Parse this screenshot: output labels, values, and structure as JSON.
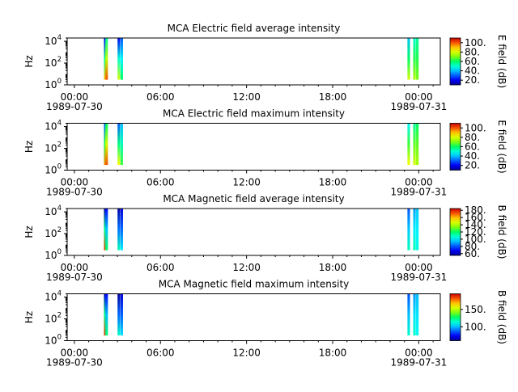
{
  "chart_data": [
    {
      "type": "heatmap",
      "title": "MCA  Electric field average intensity",
      "ylabel": "Hz",
      "y_scale": "log",
      "ylim": [
        1,
        20000
      ],
      "y_ticks": [
        {
          "base": "10",
          "exp": "0"
        },
        {
          "base": "10",
          "exp": "2"
        },
        {
          "base": "10",
          "exp": "4"
        }
      ],
      "x_ticks": [
        "00:00",
        "06:00",
        "12:00",
        "18:00",
        "00:00"
      ],
      "x_dates": [
        "1989-07-30",
        "1989-07-31"
      ],
      "xlim_hours": [
        -0.5,
        25.5
      ],
      "colorbar": {
        "label": "E field (dB)",
        "range": [
          10,
          110
        ],
        "ticks": [
          "20.",
          "40.",
          "60.",
          "80.",
          "100."
        ],
        "tick_values": [
          20,
          40,
          60,
          80,
          100
        ]
      },
      "passes": [
        {
          "start_h": 2.1,
          "end_h": 3.5,
          "columns": [
            {
              "t": 2.15,
              "top": 20000,
              "bottom": 3,
              "top_db": 20,
              "bottom_db": 90
            },
            {
              "t": 2.25,
              "top": 20000,
              "bottom": 3,
              "top_db": 55,
              "bottom_db": 100
            },
            {
              "t": 3.1,
              "top": 20000,
              "bottom": 3,
              "top_db": 20,
              "bottom_db": 80
            },
            {
              "t": 3.3,
              "top": 20000,
              "bottom": 3,
              "top_db": 30,
              "bottom_db": 60
            }
          ]
        },
        {
          "start_h": 23.2,
          "end_h": 24.0,
          "columns": [
            {
              "t": 23.3,
              "top": 20000,
              "bottom": 3,
              "top_db": 40,
              "bottom_db": 80
            },
            {
              "t": 23.7,
              "top": 20000,
              "bottom": 3,
              "top_db": 50,
              "bottom_db": 75
            },
            {
              "t": 23.9,
              "top": 20000,
              "bottom": 3,
              "top_db": 55,
              "bottom_db": 70
            }
          ]
        }
      ]
    },
    {
      "type": "heatmap",
      "title": "MCA  Electric field maximum intensity",
      "ylabel": "Hz",
      "y_scale": "log",
      "ylim": [
        1,
        20000
      ],
      "y_ticks": [
        {
          "base": "10",
          "exp": "0"
        },
        {
          "base": "10",
          "exp": "2"
        },
        {
          "base": "10",
          "exp": "4"
        }
      ],
      "x_ticks": [
        "00:00",
        "06:00",
        "12:00",
        "18:00",
        "00:00"
      ],
      "x_dates": [
        "1989-07-30",
        "1989-07-31"
      ],
      "xlim_hours": [
        -0.5,
        25.5
      ],
      "colorbar": {
        "label": "E field (dB)",
        "range": [
          10,
          110
        ],
        "ticks": [
          "20.",
          "40.",
          "60.",
          "80.",
          "100."
        ],
        "tick_values": [
          20,
          40,
          60,
          80,
          100
        ]
      },
      "passes": [
        {
          "start_h": 2.1,
          "end_h": 3.5,
          "columns": [
            {
              "t": 2.15,
              "top": 20000,
              "bottom": 3,
              "top_db": 30,
              "bottom_db": 95
            },
            {
              "t": 2.25,
              "top": 20000,
              "bottom": 3,
              "top_db": 60,
              "bottom_db": 100
            },
            {
              "t": 3.1,
              "top": 20000,
              "bottom": 3,
              "top_db": 30,
              "bottom_db": 85
            },
            {
              "t": 3.3,
              "top": 20000,
              "bottom": 3,
              "top_db": 40,
              "bottom_db": 65
            }
          ]
        },
        {
          "start_h": 23.2,
          "end_h": 24.0,
          "columns": [
            {
              "t": 23.3,
              "top": 20000,
              "bottom": 3,
              "top_db": 45,
              "bottom_db": 85
            },
            {
              "t": 23.7,
              "top": 20000,
              "bottom": 3,
              "top_db": 55,
              "bottom_db": 80
            },
            {
              "t": 23.9,
              "top": 20000,
              "bottom": 3,
              "top_db": 60,
              "bottom_db": 75
            }
          ]
        }
      ]
    },
    {
      "type": "heatmap",
      "title": "MCA  Magnetic field average intensity",
      "ylabel": "Hz",
      "y_scale": "log",
      "ylim": [
        1,
        20000
      ],
      "y_ticks": [
        {
          "base": "10",
          "exp": "0"
        },
        {
          "base": "10",
          "exp": "2"
        },
        {
          "base": "10",
          "exp": "4"
        }
      ],
      "x_ticks": [
        "00:00",
        "06:00",
        "12:00",
        "18:00",
        "00:00"
      ],
      "x_dates": [
        "1989-07-30",
        "1989-07-31"
      ],
      "xlim_hours": [
        -0.5,
        25.5
      ],
      "colorbar": {
        "label": "B field (dB)",
        "range": [
          55,
          185
        ],
        "ticks": [
          "60.",
          "80.",
          "100.",
          "120.",
          "140.",
          "160.",
          "180."
        ],
        "tick_values": [
          60,
          80,
          100,
          120,
          140,
          160,
          180
        ]
      },
      "passes": [
        {
          "start_h": 2.1,
          "end_h": 3.5,
          "columns": [
            {
              "t": 2.15,
              "top": 20000,
              "bottom": 3,
              "top_db": 58,
              "bottom_db": 175
            },
            {
              "t": 2.25,
              "top": 20000,
              "bottom": 3,
              "top_db": 70,
              "bottom_db": 120
            },
            {
              "t": 3.1,
              "top": 20000,
              "bottom": 3,
              "top_db": 58,
              "bottom_db": 110
            },
            {
              "t": 3.3,
              "top": 20000,
              "bottom": 3,
              "top_db": 65,
              "bottom_db": 100
            }
          ]
        },
        {
          "start_h": 23.2,
          "end_h": 24.0,
          "columns": [
            {
              "t": 23.3,
              "top": 20000,
              "bottom": 3,
              "top_db": 80,
              "bottom_db": 110
            },
            {
              "t": 23.7,
              "top": 20000,
              "bottom": 3,
              "top_db": 90,
              "bottom_db": 110
            },
            {
              "t": 23.9,
              "top": 20000,
              "bottom": 3,
              "top_db": 95,
              "bottom_db": 105
            }
          ]
        }
      ]
    },
    {
      "type": "heatmap",
      "title": "MCA  Magnetic field maximum intensity",
      "ylabel": "Hz",
      "y_scale": "log",
      "ylim": [
        1,
        20000
      ],
      "y_ticks": [
        {
          "base": "10",
          "exp": "0"
        },
        {
          "base": "10",
          "exp": "2"
        },
        {
          "base": "10",
          "exp": "4"
        }
      ],
      "x_ticks": [
        "00:00",
        "06:00",
        "12:00",
        "18:00",
        "00:00"
      ],
      "x_dates": [
        "1989-07-30",
        "1989-07-31"
      ],
      "xlim_hours": [
        -0.5,
        25.5
      ],
      "colorbar": {
        "label": "B field (dB)",
        "range": [
          60,
          195
        ],
        "ticks": [
          "100.",
          "150."
        ],
        "tick_values": [
          100,
          150
        ]
      },
      "passes": [
        {
          "start_h": 2.1,
          "end_h": 3.5,
          "columns": [
            {
              "t": 2.15,
              "top": 20000,
              "bottom": 3,
              "top_db": 65,
              "bottom_db": 185
            },
            {
              "t": 2.25,
              "top": 20000,
              "bottom": 3,
              "top_db": 75,
              "bottom_db": 125
            },
            {
              "t": 3.1,
              "top": 20000,
              "bottom": 3,
              "top_db": 62,
              "bottom_db": 115
            },
            {
              "t": 3.3,
              "top": 20000,
              "bottom": 3,
              "top_db": 70,
              "bottom_db": 105
            }
          ]
        },
        {
          "start_h": 23.2,
          "end_h": 24.0,
          "columns": [
            {
              "t": 23.3,
              "top": 20000,
              "bottom": 3,
              "top_db": 85,
              "bottom_db": 115
            },
            {
              "t": 23.7,
              "top": 20000,
              "bottom": 3,
              "top_db": 95,
              "bottom_db": 115
            },
            {
              "t": 23.9,
              "top": 20000,
              "bottom": 3,
              "top_db": 100,
              "bottom_db": 110
            }
          ]
        }
      ]
    }
  ]
}
